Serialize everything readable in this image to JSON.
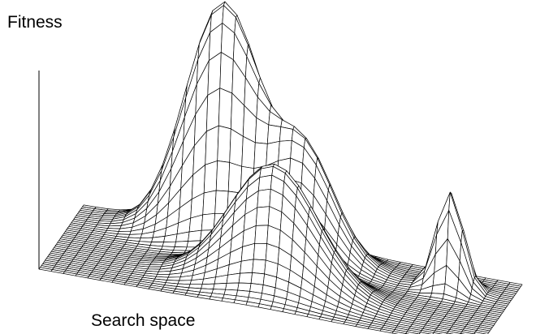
{
  "labels": {
    "fitness": "Fitness",
    "search_space": "Search space"
  },
  "surface": {
    "type": "3d-wireframe",
    "line_color": "#000000",
    "fill_color": "#ffffff",
    "peaks": [
      {
        "name": "tallest peak",
        "height": 1.0
      },
      {
        "name": "rear shoulder peak",
        "height": 0.48
      },
      {
        "name": "front peak",
        "height": 0.52
      },
      {
        "name": "narrow right peak",
        "height": 0.42
      }
    ]
  }
}
